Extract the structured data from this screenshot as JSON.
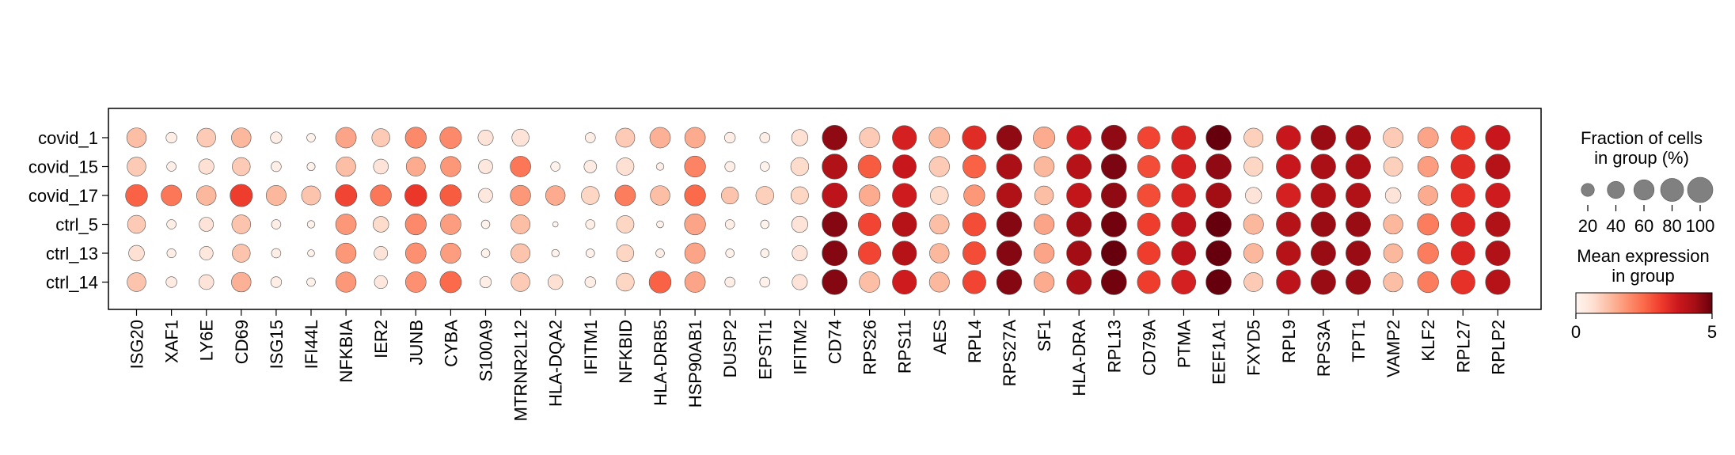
{
  "chart_data": {
    "type": "dotplot",
    "title": "",
    "xlabel": "",
    "ylabel": "",
    "genes": [
      "ISG20",
      "XAF1",
      "LY6E",
      "CD69",
      "ISG15",
      "IFI44L",
      "NFKBIA",
      "IER2",
      "JUNB",
      "CYBA",
      "S100A9",
      "MTRNR2L12",
      "HLA-DQA2",
      "IFITM1",
      "NFKBID",
      "HLA-DRB5",
      "HSP90AB1",
      "DUSP2",
      "EPSTI1",
      "IFITM2",
      "CD74",
      "RPS26",
      "RPS11",
      "AES",
      "RPL4",
      "RPS27A",
      "SF1",
      "HLA-DRA",
      "RPL13",
      "CD79A",
      "PTMA",
      "EEF1A1",
      "FXYD5",
      "RPL9",
      "RPS3A",
      "TPT1",
      "VAMP2",
      "KLF2",
      "RPL27",
      "RPLP2"
    ],
    "groups": [
      "covid_1",
      "covid_15",
      "covid_17",
      "ctrl_5",
      "ctrl_13",
      "ctrl_14"
    ],
    "fraction_percent": [
      [
        55,
        12,
        50,
        55,
        14,
        6,
        62,
        45,
        65,
        70,
        30,
        40,
        0,
        10,
        52,
        62,
        62,
        12,
        10,
        35,
        95,
        60,
        90,
        62,
        88,
        98,
        70,
        92,
        98,
        75,
        88,
        98,
        52,
        92,
        95,
        95,
        58,
        62,
        90,
        95
      ],
      [
        50,
        8,
        30,
        45,
        10,
        5,
        55,
        28,
        52,
        60,
        25,
        62,
        8,
        18,
        42,
        4,
        65,
        10,
        8,
        45,
        98,
        80,
        85,
        60,
        80,
        100,
        60,
        95,
        100,
        75,
        90,
        100,
        52,
        92,
        95,
        95,
        52,
        62,
        90,
        95
      ],
      [
        72,
        62,
        55,
        75,
        58,
        52,
        70,
        65,
        72,
        68,
        25,
        60,
        55,
        45,
        62,
        55,
        65,
        40,
        45,
        42,
        98,
        65,
        90,
        45,
        65,
        98,
        50,
        95,
        100,
        80,
        88,
        100,
        35,
        92,
        95,
        95,
        32,
        55,
        88,
        95
      ],
      [
        45,
        8,
        25,
        50,
        8,
        4,
        62,
        32,
        65,
        62,
        6,
        52,
        1,
        8,
        42,
        3,
        65,
        8,
        6,
        35,
        98,
        78,
        92,
        55,
        82,
        98,
        60,
        95,
        100,
        78,
        92,
        100,
        58,
        92,
        95,
        95,
        55,
        68,
        90,
        95
      ],
      [
        32,
        7,
        22,
        45,
        8,
        3,
        60,
        22,
        62,
        60,
        6,
        52,
        4,
        6,
        40,
        6,
        62,
        6,
        6,
        30,
        98,
        78,
        90,
        55,
        80,
        98,
        60,
        95,
        100,
        80,
        90,
        100,
        55,
        92,
        95,
        95,
        52,
        65,
        88,
        95
      ],
      [
        50,
        12,
        28,
        55,
        12,
        6,
        60,
        20,
        62,
        68,
        14,
        50,
        28,
        12,
        45,
        72,
        62,
        10,
        10,
        30,
        98,
        62,
        90,
        58,
        82,
        98,
        60,
        95,
        100,
        80,
        90,
        100,
        52,
        90,
        95,
        95,
        55,
        65,
        90,
        95
      ]
    ],
    "mean_expression": [
      [
        1.2,
        0.2,
        1.0,
        1.3,
        0.2,
        0.1,
        1.6,
        1.0,
        2.0,
        2.0,
        0.5,
        0.5,
        0.0,
        0.2,
        1.0,
        1.4,
        1.5,
        0.2,
        0.2,
        0.6,
        4.6,
        1.0,
        3.6,
        1.3,
        3.4,
        4.6,
        1.5,
        3.8,
        4.6,
        3.0,
        3.5,
        5.2,
        0.9,
        3.8,
        4.5,
        4.4,
        1.0,
        1.6,
        3.2,
        3.8
      ],
      [
        1.0,
        0.2,
        0.6,
        1.0,
        0.2,
        0.1,
        1.2,
        0.5,
        1.5,
        1.8,
        0.4,
        2.3,
        0.1,
        0.3,
        0.6,
        0.2,
        2.1,
        0.2,
        0.1,
        0.7,
        4.2,
        2.7,
        3.8,
        1.0,
        2.6,
        4.3,
        1.3,
        4.1,
        4.8,
        2.9,
        3.6,
        4.6,
        0.8,
        3.8,
        4.3,
        4.3,
        0.9,
        1.7,
        3.4,
        4.1
      ],
      [
        2.6,
        2.3,
        1.3,
        3.1,
        1.3,
        1.1,
        3.0,
        2.3,
        3.2,
        2.7,
        0.4,
        1.8,
        1.5,
        0.8,
        2.2,
        1.2,
        2.5,
        1.1,
        0.9,
        0.8,
        4.0,
        1.5,
        3.7,
        0.7,
        1.8,
        4.2,
        1.2,
        3.9,
        4.6,
        2.9,
        3.5,
        4.4,
        0.5,
        3.6,
        4.2,
        4.2,
        0.5,
        1.5,
        3.3,
        3.7
      ],
      [
        1.0,
        0.2,
        0.5,
        1.1,
        0.2,
        0.1,
        1.8,
        0.7,
        2.0,
        1.7,
        0.1,
        1.2,
        0.0,
        0.2,
        0.8,
        0.1,
        1.6,
        0.2,
        0.1,
        0.5,
        4.7,
        3.0,
        4.1,
        1.2,
        2.9,
        4.7,
        1.6,
        4.4,
        4.9,
        3.1,
        4.0,
        5.3,
        1.3,
        4.1,
        4.5,
        4.5,
        1.3,
        2.2,
        3.5,
        4.2
      ],
      [
        0.6,
        0.2,
        0.4,
        1.1,
        0.2,
        0.1,
        1.8,
        0.5,
        1.9,
        1.7,
        0.1,
        1.1,
        0.1,
        0.1,
        0.8,
        0.2,
        1.6,
        0.1,
        0.1,
        0.5,
        4.7,
        3.0,
        4.1,
        1.3,
        2.9,
        4.7,
        1.6,
        4.4,
        5.0,
        3.1,
        4.0,
        5.3,
        1.3,
        4.1,
        4.5,
        4.5,
        1.3,
        2.2,
        3.5,
        4.2
      ],
      [
        1.1,
        0.3,
        0.5,
        1.4,
        0.2,
        0.1,
        1.8,
        0.4,
        1.9,
        2.5,
        0.2,
        1.0,
        0.6,
        0.2,
        0.8,
        2.6,
        1.6,
        0.2,
        0.1,
        0.5,
        4.7,
        1.2,
        3.7,
        1.3,
        3.0,
        4.7,
        1.5,
        4.3,
        4.9,
        3.1,
        3.6,
        5.3,
        1.0,
        4.0,
        4.5,
        4.5,
        1.2,
        2.2,
        3.3,
        4.1
      ]
    ],
    "size_legend": {
      "title": "Fraction of cells\nin group (%)",
      "values": [
        20,
        40,
        60,
        80,
        100
      ],
      "labels": [
        "20",
        "40",
        "60",
        "80",
        "100"
      ]
    },
    "color_legend": {
      "title": "Mean expression\nin group",
      "range": [
        0,
        5
      ],
      "ticks": [
        "0",
        "5"
      ],
      "colormap": "Reds"
    },
    "colors": {
      "dot_edge": "#555555",
      "size_legend_dot": "#808080"
    }
  }
}
